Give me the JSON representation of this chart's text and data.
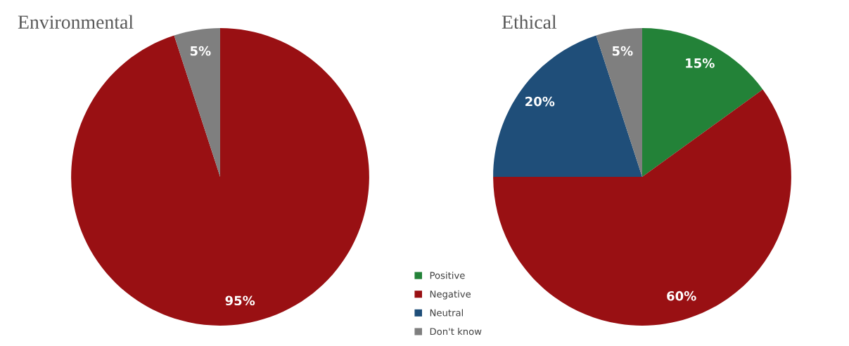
{
  "chart_data": [
    {
      "type": "pie",
      "title": "Environmental",
      "categories": [
        null,
        null
      ],
      "values": [
        95,
        5
      ],
      "colors": [
        "#991013",
        "#7f7f7f"
      ],
      "value_labels": [
        "95%",
        "5%"
      ],
      "legend": false
    },
    {
      "type": "pie",
      "title": "Ethical",
      "categories": [
        "Positive",
        "Negative",
        "Neutral",
        "Don't know"
      ],
      "values": [
        15,
        60,
        20,
        5
      ],
      "colors": [
        "#238238",
        "#991013",
        "#1f4e79",
        "#7f7f7f"
      ],
      "value_labels": [
        "15%",
        "60%",
        "20%",
        "5%"
      ],
      "legend": "bottom left"
    }
  ]
}
